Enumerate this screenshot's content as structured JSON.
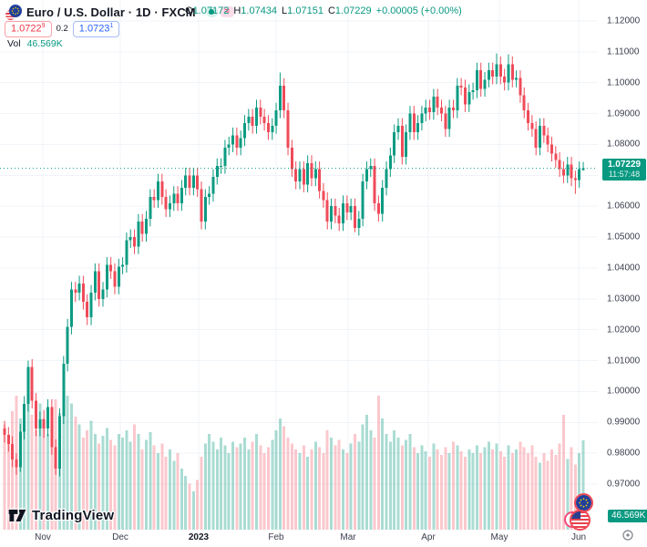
{
  "colors": {
    "up": "#0c9b82",
    "down": "#ef4b59",
    "vol_up": "rgba(12,155,130,0.35)",
    "vol_down": "rgba(242,74,89,0.30)",
    "accent_teal": "#089981",
    "accent_blue": "#2962ff",
    "accent_red": "#f23645",
    "grid": "#f0f3f8",
    "axis_text": "#3a3e4d"
  },
  "header": {
    "symbol_title": "Euro / U.S. Dollar · 1D · FXCM",
    "market_status_icon": "market-open-dot",
    "delayed_symbol": "≈",
    "ohlc": {
      "o_label": "O",
      "o": "1.07172",
      "h_label": "H",
      "h": "1.07434",
      "l_label": "L",
      "l": "1.07151",
      "c_label": "C",
      "c": "1.07229",
      "change": "+0.00005 (+0.00%)"
    },
    "bid": "1.0722",
    "bid_sup": "9",
    "spread": "0.2",
    "ask": "1.0723",
    "ask_sup": "1",
    "vol_label": "Vol",
    "vol_value": "46.569K"
  },
  "price_axis": {
    "labels": [
      "1.12000",
      "1.11000",
      "1.10000",
      "1.09000",
      "1.08000",
      "1.07000",
      "1.06000",
      "1.05000",
      "1.04000",
      "1.03000",
      "1.02000",
      "1.01000",
      "1.00000",
      "0.99000",
      "0.98000",
      "0.97000"
    ],
    "current_price": "1.07229",
    "countdown": "11:57:48",
    "volume_label": "46.569K"
  },
  "time_axis": {
    "labels": [
      "Nov",
      "Dec",
      "2023",
      "Feb",
      "Mar",
      "Apr",
      "May",
      "Jun"
    ]
  },
  "logo": {
    "text": "TradingView"
  },
  "chart_data": {
    "type": "candlestick",
    "title": "Euro / U.S. Dollar, 1D, FXCM",
    "price_range": [
      0.97,
      1.12
    ],
    "price_step": 0.01,
    "grid": true,
    "current_price": 1.07229,
    "time_ticks": [
      "Nov",
      "Dec",
      "2023",
      "Feb",
      "Mar",
      "Apr",
      "May",
      "Jun"
    ],
    "series_note": "daily OHLC estimated from pixels, volume in thousands",
    "candles": [
      [
        0.988,
        0.9905,
        0.9835,
        0.986,
        55
      ],
      [
        0.986,
        0.9885,
        0.9805,
        0.983,
        48
      ],
      [
        0.983,
        0.9855,
        0.9755,
        0.978,
        62
      ],
      [
        0.978,
        0.98,
        0.973,
        0.9755,
        70
      ],
      [
        0.9755,
        0.9895,
        0.974,
        0.987,
        58
      ],
      [
        0.987,
        0.9985,
        0.9845,
        0.996,
        65
      ],
      [
        0.996,
        1.01,
        0.9935,
        1.008,
        72
      ],
      [
        1.008,
        1.0105,
        0.9945,
        0.997,
        60
      ],
      [
        0.997,
        0.9995,
        0.9855,
        0.988,
        52
      ],
      [
        0.988,
        0.9935,
        0.9855,
        0.991,
        66
      ],
      [
        0.991,
        0.994,
        0.985,
        0.988,
        58
      ],
      [
        0.988,
        0.9975,
        0.9855,
        0.995,
        50
      ],
      [
        0.995,
        0.9975,
        0.9795,
        0.982,
        63
      ],
      [
        0.982,
        0.9845,
        0.973,
        0.975,
        68
      ],
      [
        0.975,
        0.9945,
        0.9725,
        0.992,
        61
      ],
      [
        0.992,
        1.0115,
        0.9895,
        1.009,
        64
      ],
      [
        1.009,
        1.0235,
        1.0065,
        1.021,
        70
      ],
      [
        1.021,
        1.0355,
        1.0185,
        1.033,
        66
      ],
      [
        1.033,
        1.0355,
        1.029,
        1.032,
        59
      ],
      [
        1.032,
        1.0375,
        1.0295,
        1.035,
        55
      ],
      [
        1.035,
        1.0375,
        1.0265,
        1.029,
        48
      ],
      [
        1.029,
        1.0315,
        1.0215,
        1.024,
        52
      ],
      [
        1.024,
        1.0345,
        1.0215,
        1.032,
        57
      ],
      [
        1.032,
        1.0415,
        1.0295,
        1.039,
        50
      ],
      [
        1.039,
        1.0415,
        1.0275,
        1.03,
        45
      ],
      [
        1.03,
        1.0355,
        1.0275,
        1.033,
        49
      ],
      [
        1.033,
        1.0435,
        1.0305,
        1.041,
        53
      ],
      [
        1.041,
        1.0435,
        1.0365,
        1.039,
        47
      ],
      [
        1.039,
        1.0415,
        1.0315,
        1.034,
        44
      ],
      [
        1.034,
        1.043,
        1.0315,
        1.0405,
        50
      ],
      [
        1.0405,
        1.0435,
        1.038,
        1.041,
        48
      ],
      [
        1.041,
        1.0515,
        1.0385,
        1.049,
        52
      ],
      [
        1.049,
        1.0525,
        1.0465,
        1.05,
        46
      ],
      [
        1.05,
        1.0525,
        1.0445,
        1.047,
        55
      ],
      [
        1.047,
        1.0575,
        1.0445,
        1.055,
        50
      ],
      [
        1.055,
        1.0575,
        1.0485,
        1.051,
        42
      ],
      [
        1.051,
        1.0585,
        1.0485,
        1.056,
        47
      ],
      [
        1.056,
        1.0655,
        1.0535,
        1.063,
        51
      ],
      [
        1.063,
        1.0655,
        1.0595,
        1.062,
        44
      ],
      [
        1.062,
        1.0705,
        1.0595,
        1.068,
        40
      ],
      [
        1.068,
        1.0705,
        1.0605,
        1.063,
        45
      ],
      [
        1.063,
        1.0655,
        1.0565,
        1.059,
        38
      ],
      [
        1.059,
        1.0635,
        1.0565,
        1.061,
        42
      ],
      [
        1.061,
        1.0665,
        1.0585,
        1.064,
        36
      ],
      [
        1.064,
        1.0665,
        1.0585,
        1.061,
        40
      ],
      [
        1.061,
        1.0685,
        1.0585,
        1.066,
        32
      ],
      [
        1.066,
        1.0725,
        1.0635,
        1.07,
        28
      ],
      [
        1.07,
        1.0725,
        1.0635,
        1.066,
        24
      ],
      [
        1.066,
        1.0725,
        1.0635,
        1.07,
        20
      ],
      [
        1.07,
        1.0725,
        1.063,
        1.0655,
        26
      ],
      [
        1.0655,
        1.068,
        1.0525,
        1.055,
        38
      ],
      [
        1.055,
        1.0655,
        1.0525,
        1.063,
        45
      ],
      [
        1.063,
        1.0665,
        1.0605,
        1.064,
        50
      ],
      [
        1.064,
        1.072,
        1.0615,
        1.0695,
        46
      ],
      [
        1.0695,
        1.0755,
        1.067,
        1.073,
        42
      ],
      [
        1.073,
        1.0755,
        1.0705,
        1.073,
        48
      ],
      [
        1.073,
        1.0815,
        1.0705,
        1.079,
        44
      ],
      [
        1.079,
        1.0825,
        1.0765,
        1.08,
        40
      ],
      [
        1.08,
        1.0855,
        1.0775,
        1.083,
        46
      ],
      [
        1.083,
        1.0855,
        1.0765,
        1.079,
        43
      ],
      [
        1.079,
        1.0845,
        1.0765,
        1.082,
        45
      ],
      [
        1.082,
        1.0895,
        1.0795,
        1.087,
        48
      ],
      [
        1.087,
        1.0915,
        1.0845,
        1.089,
        42
      ],
      [
        1.089,
        1.0915,
        1.0835,
        1.086,
        46
      ],
      [
        1.086,
        1.0945,
        1.0835,
        1.092,
        50
      ],
      [
        1.092,
        1.0945,
        1.0865,
        1.089,
        44
      ],
      [
        1.089,
        1.0915,
        1.0845,
        1.087,
        40
      ],
      [
        1.087,
        1.0895,
        1.0815,
        1.084,
        43
      ],
      [
        1.084,
        1.0885,
        1.0815,
        1.086,
        47
      ],
      [
        1.086,
        1.0935,
        1.0835,
        1.091,
        52
      ],
      [
        1.091,
        1.1033,
        1.0885,
        1.099,
        58
      ],
      [
        1.099,
        1.1015,
        1.0885,
        1.091,
        54
      ],
      [
        1.091,
        1.0935,
        1.0765,
        1.079,
        48
      ],
      [
        1.079,
        1.0815,
        1.0695,
        1.072,
        45
      ],
      [
        1.072,
        1.0745,
        1.0655,
        1.068,
        42
      ],
      [
        1.068,
        1.0745,
        1.0655,
        1.072,
        40
      ],
      [
        1.072,
        1.0745,
        1.0645,
        1.067,
        44
      ],
      [
        1.067,
        1.0765,
        1.0645,
        1.074,
        38
      ],
      [
        1.074,
        1.0765,
        1.0665,
        1.069,
        42
      ],
      [
        1.069,
        1.0745,
        1.0665,
        1.072,
        46
      ],
      [
        1.072,
        1.0745,
        1.0625,
        1.065,
        43
      ],
      [
        1.065,
        1.0675,
        1.0595,
        1.062,
        40
      ],
      [
        1.062,
        1.0645,
        1.0525,
        1.055,
        52
      ],
      [
        1.055,
        1.0625,
        1.0525,
        1.06,
        48
      ],
      [
        1.06,
        1.0625,
        1.0545,
        1.057,
        44
      ],
      [
        1.057,
        1.0595,
        1.052,
        1.0545,
        47
      ],
      [
        1.0545,
        1.0635,
        1.052,
        1.061,
        42
      ],
      [
        1.061,
        1.0635,
        1.0555,
        1.058,
        40
      ],
      [
        1.058,
        1.0625,
        1.0555,
        1.06,
        45
      ],
      [
        1.06,
        1.0625,
        1.0516,
        1.053,
        50
      ],
      [
        1.053,
        1.0585,
        1.0505,
        1.056,
        46
      ],
      [
        1.056,
        1.0705,
        1.0535,
        1.068,
        55
      ],
      [
        1.068,
        1.0745,
        1.0655,
        1.072,
        60
      ],
      [
        1.072,
        1.0755,
        1.0695,
        1.073,
        52
      ],
      [
        1.073,
        1.0755,
        1.0585,
        1.061,
        48
      ],
      [
        1.061,
        1.0635,
        1.055,
        1.0575,
        70
      ],
      [
        1.0575,
        1.0685,
        1.055,
        1.066,
        58
      ],
      [
        1.066,
        1.0745,
        1.0635,
        1.072,
        50
      ],
      [
        1.072,
        1.079,
        1.0695,
        1.0765,
        46
      ],
      [
        1.0765,
        1.0865,
        1.074,
        1.084,
        52
      ],
      [
        1.084,
        1.0885,
        1.0815,
        1.086,
        48
      ],
      [
        1.086,
        1.0885,
        1.0735,
        1.076,
        44
      ],
      [
        1.076,
        1.0865,
        1.0735,
        1.084,
        47
      ],
      [
        1.084,
        1.0925,
        1.0815,
        1.09,
        50
      ],
      [
        1.09,
        1.0925,
        1.0815,
        1.084,
        43
      ],
      [
        1.084,
        1.0895,
        1.0815,
        1.087,
        40
      ],
      [
        1.087,
        1.0925,
        1.0845,
        1.09,
        44
      ],
      [
        1.09,
        1.0945,
        1.0875,
        1.092,
        41
      ],
      [
        1.092,
        1.0945,
        1.088,
        1.0905,
        38
      ],
      [
        1.0905,
        1.098,
        1.088,
        1.0955,
        45
      ],
      [
        1.0955,
        1.098,
        1.0895,
        1.092,
        42
      ],
      [
        1.092,
        1.0945,
        1.0875,
        1.09,
        39
      ],
      [
        1.09,
        1.0925,
        1.0825,
        1.085,
        43
      ],
      [
        1.085,
        1.0945,
        1.0825,
        1.092,
        40
      ],
      [
        1.092,
        1.0945,
        1.0885,
        1.091,
        46
      ],
      [
        1.091,
        1.1015,
        1.0885,
        1.099,
        44
      ],
      [
        1.099,
        1.1015,
        1.096,
        1.0985,
        41
      ],
      [
        1.0985,
        1.101,
        1.0905,
        1.093,
        38
      ],
      [
        1.093,
        1.0995,
        1.0905,
        1.097,
        42
      ],
      [
        1.097,
        1.1,
        1.0945,
        1.0975,
        40
      ],
      [
        1.0975,
        1.1065,
        1.095,
        1.104,
        44
      ],
      [
        1.104,
        1.1065,
        1.0955,
        1.098,
        40
      ],
      [
        1.098,
        1.1035,
        1.0955,
        1.101,
        43
      ],
      [
        1.101,
        1.1065,
        1.0985,
        1.104,
        46
      ],
      [
        1.104,
        1.1065,
        1.0995,
        1.102,
        42
      ],
      [
        1.102,
        1.1095,
        1.0995,
        1.106,
        45
      ],
      [
        1.106,
        1.1085,
        1.0995,
        1.102,
        41
      ],
      [
        1.102,
        1.1045,
        1.0975,
        1.1,
        38
      ],
      [
        1.1,
        1.1092,
        1.0975,
        1.106,
        44
      ],
      [
        1.106,
        1.1085,
        1.0985,
        1.101,
        40
      ],
      [
        1.101,
        1.104,
        1.0985,
        1.1015,
        42
      ],
      [
        1.1015,
        1.104,
        1.0935,
        1.096,
        46
      ],
      [
        1.096,
        1.0985,
        1.0885,
        1.091,
        43
      ],
      [
        1.091,
        1.0935,
        1.0845,
        1.087,
        40
      ],
      [
        1.087,
        1.0895,
        1.0825,
        1.085,
        44
      ],
      [
        1.085,
        1.0875,
        1.0765,
        1.079,
        38
      ],
      [
        1.079,
        1.0885,
        1.0765,
        1.086,
        35
      ],
      [
        1.086,
        1.0885,
        1.0805,
        1.083,
        40
      ],
      [
        1.083,
        1.0855,
        1.0775,
        1.08,
        36
      ],
      [
        1.08,
        1.0825,
        1.0745,
        1.077,
        42
      ],
      [
        1.077,
        1.0795,
        1.0725,
        1.075,
        39
      ],
      [
        1.075,
        1.0775,
        1.0695,
        1.072,
        45
      ],
      [
        1.072,
        1.0745,
        1.0675,
        1.07,
        60
      ],
      [
        1.07,
        1.076,
        1.0675,
        1.0735,
        37
      ],
      [
        1.0735,
        1.076,
        1.0665,
        1.069,
        43
      ],
      [
        1.069,
        1.0715,
        1.064,
        1.0685,
        34
      ],
      [
        1.0685,
        1.0745,
        1.066,
        1.072,
        40
      ],
      [
        1.07172,
        1.07434,
        1.07151,
        1.07229,
        46.569
      ]
    ]
  }
}
